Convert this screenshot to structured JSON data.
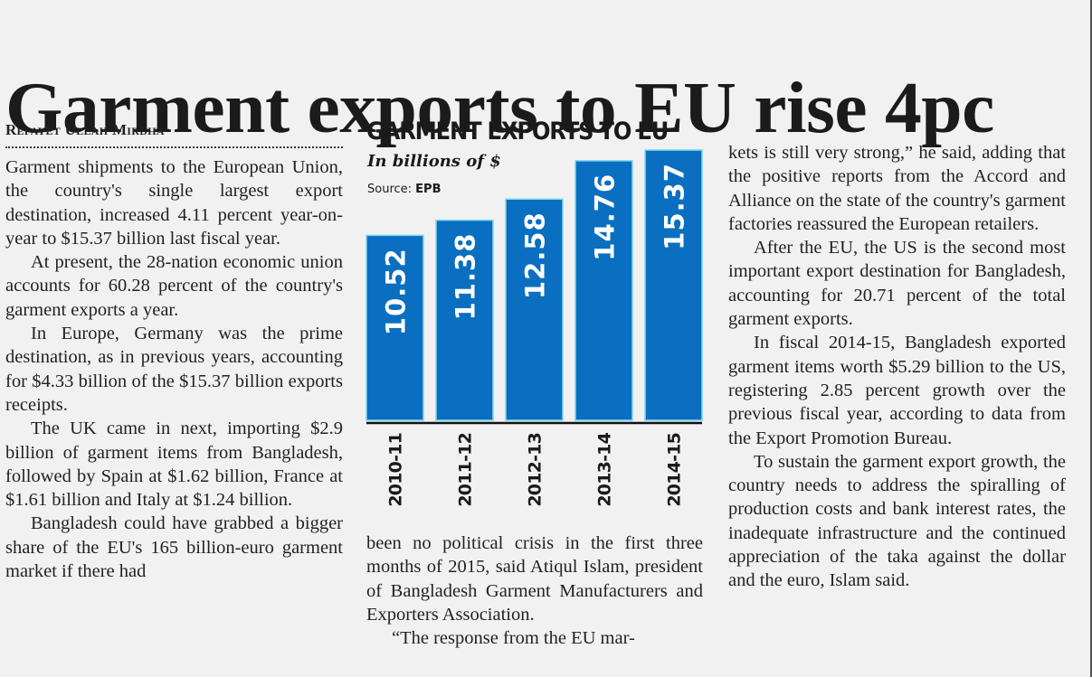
{
  "headline": "Garment exports to EU rise 4pc",
  "byline": "Refayet Ullah Mirdha",
  "columns": {
    "col1": [
      "Garment shipments to the European Union, the country's single largest export destination, increased 4.11 percent year-on-year to $15.37 billion last fiscal year.",
      "At present, the 28-nation economic union accounts for 60.28 percent of the country's garment exports a year.",
      "In Europe, Germany was the prime destination, as in previous years, accounting for $4.33 billion of the $15.37 billion exports receipts.",
      "The UK came in next, importing $2.9 billion of garment items from Bangladesh, followed by Spain at $1.62 billion, France at $1.61 billion and Italy at $1.24 billion.",
      "Bangladesh could have grabbed a bigger share of the EU's 165 billion-euro garment market if there had"
    ],
    "col2": [
      "been no political crisis in the first three months of 2015, said Atiqul Islam, president of Bangladesh Garment Manufacturers and Exporters Association.",
      "“The response from the EU mar-"
    ],
    "col3": [
      "kets is still very strong,” he said, adding that the positive reports from the Accord and Alliance on the state of the country's garment factories reassured the European retailers.",
      "After the EU, the US is the second most important export destination for Bangladesh, accounting for 20.71 percent of the total garment exports.",
      "In fiscal 2014-15, Bangladesh exported garment items worth $5.29 billion to the US, registering 2.85 percent growth over the previous fiscal year, according to data from the Export Promotion Bureau.",
      "To sustain the garment export growth, the country needs to address the spiralling of production costs and bank interest rates, the inadequate infrastructure and the continued appreciation of the taka against the dollar and the euro, Islam said."
    ]
  },
  "chart": {
    "source_label": "Source:",
    "source_value": "EPB"
  },
  "colors": {
    "bar": "#0a6fc1",
    "bar_edge": "#7fd8f0",
    "bar_label": "#ffffff",
    "axis": "#111111"
  },
  "chart_data": {
    "type": "bar",
    "title": "GARMENT EXPORTS TO EU",
    "subtitle": "In billions of $",
    "source": "Source: EPB",
    "categories": [
      "2010-11",
      "2011-12",
      "2012-13",
      "2013-14",
      "2014-15"
    ],
    "values": [
      10.52,
      11.38,
      12.58,
      14.76,
      15.37
    ],
    "value_labels": [
      "10.52",
      "11.38",
      "12.58",
      "14.76",
      "15.37"
    ],
    "xlabel": "",
    "ylabel": "In billions of $",
    "ylim": [
      0,
      15.37
    ],
    "grid": false,
    "legend": "none",
    "label_orientation": "vertical"
  }
}
